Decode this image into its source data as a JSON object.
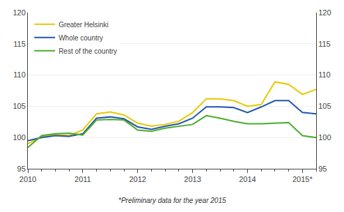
{
  "chart_data": {
    "type": "line",
    "categories": [
      "2010",
      null,
      null,
      null,
      "2011",
      null,
      null,
      null,
      "2012",
      null,
      null,
      null,
      "2013",
      null,
      null,
      null,
      "2014",
      null,
      null,
      null,
      "2015*",
      null
    ],
    "series": [
      {
        "name": "Greater Helsinki",
        "color": "#e8c800",
        "values": [
          99.0,
          100.1,
          100.5,
          100.3,
          101.2,
          103.8,
          104.1,
          103.6,
          102.3,
          101.8,
          102.1,
          102.6,
          104.0,
          106.2,
          106.2,
          105.9,
          105.0,
          105.3,
          108.9,
          108.5,
          106.9,
          107.7
        ]
      },
      {
        "name": "Whole country",
        "color": "#2255aa",
        "values": [
          99.5,
          100.0,
          100.3,
          100.2,
          100.6,
          103.1,
          103.3,
          103.0,
          101.7,
          101.3,
          101.8,
          102.2,
          103.1,
          104.9,
          104.9,
          104.8,
          104.0,
          104.9,
          105.9,
          105.9,
          104.0,
          103.8
        ]
      },
      {
        "name": "Rest of the country",
        "color": "#4aab2c",
        "values": [
          98.4,
          100.3,
          100.6,
          100.7,
          100.4,
          102.8,
          102.9,
          102.8,
          101.2,
          101.0,
          101.5,
          101.8,
          102.1,
          103.5,
          103.1,
          102.6,
          102.2,
          102.2,
          102.3,
          102.4,
          100.3,
          100.0
        ]
      }
    ],
    "ylim": [
      95,
      120
    ],
    "yticks": [
      95,
      100,
      105,
      110,
      115,
      120
    ],
    "y2lim": [
      95,
      120
    ],
    "y2ticks": [
      95,
      100,
      105,
      110,
      115,
      120
    ],
    "grid": true,
    "legend": "upper left",
    "annotations": [
      "*Preliminary data for the year 2015"
    ]
  }
}
